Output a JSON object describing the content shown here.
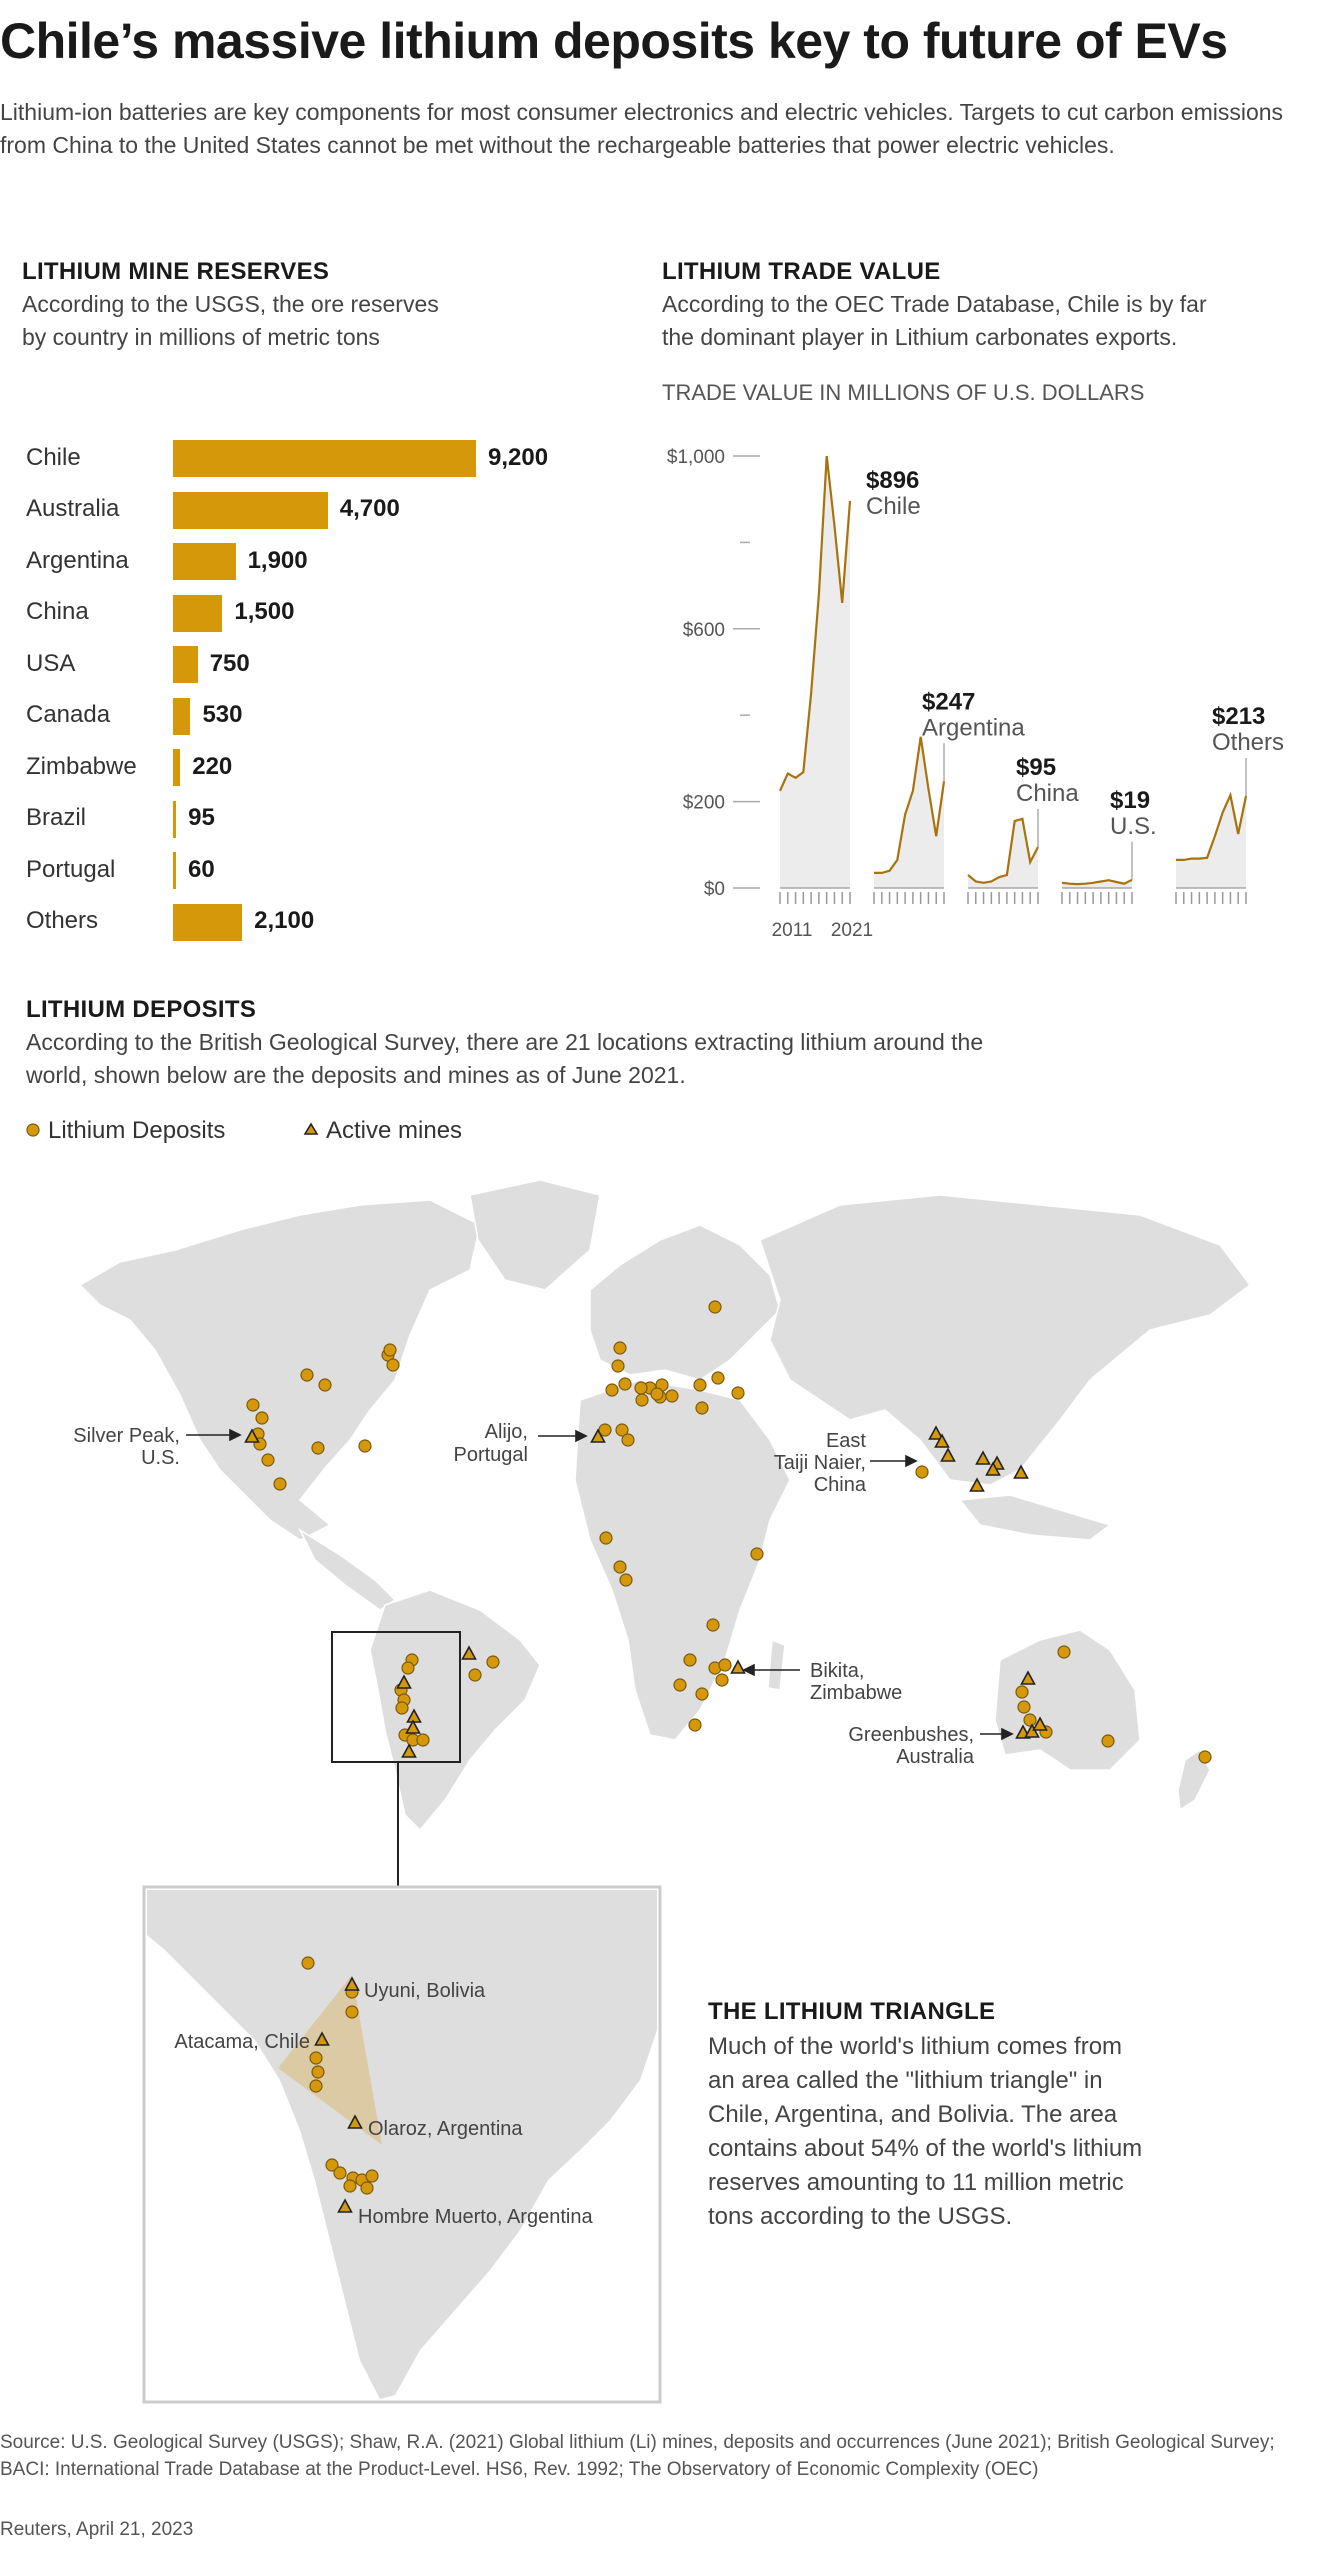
{
  "title": "Chile’s massive lithium deposits key to future of EVs",
  "intro": "Lithium-ion batteries are key components for most consumer electronics and electric vehicles. Targets to cut carbon emissions from China to the United States cannot be met without the rechargeable batteries that power electric vehicles.",
  "colors": {
    "accent": "#d4980a",
    "line": "#a8720e",
    "fill": "#ececec",
    "land": "#dedede"
  },
  "chart_data": [
    {
      "type": "bar",
      "title": "LITHIUM MINE RESERVES",
      "subtitle_lines": [
        "According to the USGS, the ore reserves",
        "by country in millions of metric tons"
      ],
      "categories": [
        "Chile",
        "Australia",
        "Argentina",
        "China",
        "USA",
        "Canada",
        "Zimbabwe",
        "Brazil",
        "Portugal",
        "Others"
      ],
      "values": [
        9200,
        4700,
        1900,
        1500,
        750,
        530,
        220,
        95,
        60,
        2100
      ],
      "value_labels": [
        "9,200",
        "4,700",
        "1,900",
        "1,500",
        "750",
        "530",
        "220",
        "95",
        "60",
        "2,100"
      ]
    },
    {
      "type": "area",
      "title": "LITHIUM TRADE VALUE",
      "subtitle_lines": [
        "According to the OEC Trade Database, Chile is by far",
        "the dominant player in Lithium carbonates exports."
      ],
      "unit_label": "TRADE VALUE IN MILLIONS OF U.S. DOLLARS",
      "ylim": [
        0,
        1000
      ],
      "yticks": [
        0,
        200,
        600,
        1000
      ],
      "ytick_labels": [
        "$0",
        "$200",
        "$600",
        "$1,000"
      ],
      "x_labels": [
        "2011",
        "2021"
      ],
      "x_range": [
        2011,
        2021
      ],
      "series": [
        {
          "name": "Chile",
          "callout": "$896",
          "values": [
            225,
            265,
            255,
            268,
            450,
            680,
            1000,
            840,
            660,
            896
          ]
        },
        {
          "name": "Argentina",
          "callout": "$247",
          "values": [
            35,
            35,
            40,
            65,
            170,
            225,
            350,
            230,
            120,
            247
          ]
        },
        {
          "name": "China",
          "callout": "$95",
          "values": [
            30,
            15,
            12,
            15,
            25,
            30,
            155,
            160,
            60,
            95
          ]
        },
        {
          "name": "U.S.",
          "callout": "$19",
          "values": [
            12,
            10,
            9,
            10,
            12,
            15,
            18,
            14,
            10,
            19
          ]
        },
        {
          "name": "Others",
          "callout": "$213",
          "values": [
            65,
            65,
            68,
            68,
            70,
            120,
            175,
            215,
            125,
            213
          ]
        }
      ]
    }
  ],
  "deposits": {
    "title": "LITHIUM DEPOSITS",
    "subtitle_lines": [
      "According to the British Geological Survey, there are 21 locations extracting lithium around the",
      "world, shown below are the deposits and mines as of June 2021."
    ],
    "legend_deposits": "Lithium Deposits",
    "legend_mines": "Active mines",
    "labels": {
      "silver_peak_1": "Silver Peak,",
      "silver_peak_2": "U.S.",
      "alijo_1": "Alijo,",
      "alijo_2": "Portugal",
      "taiji_1": "East",
      "taiji_2": "Taiji Naier,",
      "taiji_3": "China",
      "bikita_1": "Bikita,",
      "bikita_2": "Zimbabwe",
      "green_1": "Greenbushes,",
      "green_2": "Australia",
      "uyuni": "Uyuni, Bolivia",
      "atacama": "Atacama, Chile",
      "olaroz": "Olaroz, Argentina",
      "hombre": "Hombre Muerto, Argentina"
    }
  },
  "triangle": {
    "title": "THE LITHIUM TRIANGLE",
    "lines": [
      "Much of the world's lithium comes from",
      "an area called the \"lithium triangle\" in",
      "Chile, Argentina, and Bolivia. The area",
      "contains about 54% of the world's lithium",
      "reserves amounting to 11 million metric",
      "tons according to the USGS."
    ]
  },
  "source_lines": [
    "Source: U.S. Geological Survey (USGS); Shaw, R.A. (2021) Global lithium (Li) mines, deposits and occurrences (June 2021); British Geological Survey;",
    "BACI: International Trade Database at the Product-Level. HS6, Rev. 1992; The Observatory of Economic Complexity (OEC)"
  ],
  "credit": "Reuters, April 21, 2023"
}
